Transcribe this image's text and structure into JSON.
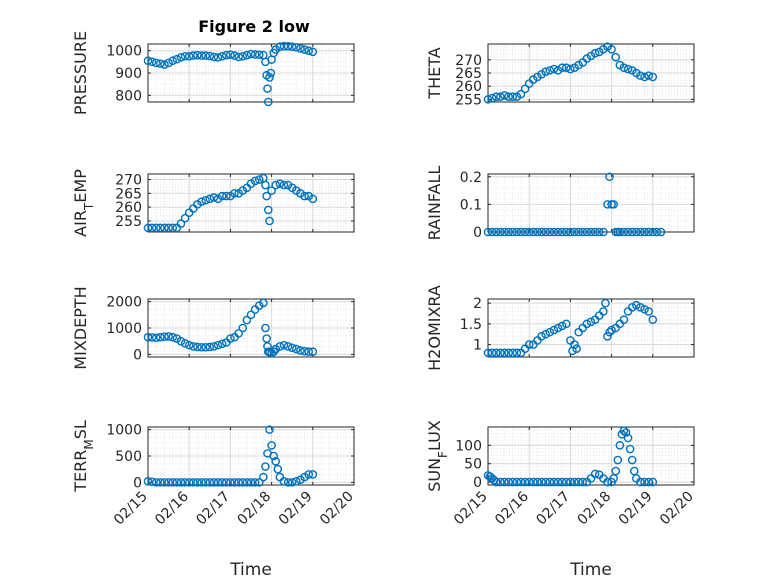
{
  "title": "Figure 2 low",
  "colors": {
    "marker": "#0072BD",
    "axis": "#262626",
    "grid": "#d8d8d8"
  },
  "chart_data": [
    {
      "type": "scatter",
      "ylabel": "PRESSURE",
      "xlabel": "",
      "ylim": [
        770,
        1030
      ],
      "yticks": [
        800,
        900,
        1000
      ],
      "ytick_labels": [
        "800",
        "900",
        "1000"
      ],
      "xlim": [
        0,
        5
      ],
      "grid": true,
      "x": [
        0.0,
        0.1,
        0.2,
        0.3,
        0.4,
        0.5,
        0.6,
        0.7,
        0.8,
        0.9,
        1.0,
        1.1,
        1.2,
        1.3,
        1.4,
        1.5,
        1.6,
        1.7,
        1.8,
        1.9,
        2.0,
        2.1,
        2.2,
        2.3,
        2.4,
        2.5,
        2.6,
        2.7,
        2.8,
        2.85,
        2.88,
        2.9,
        2.92,
        2.95,
        2.98,
        3.0,
        3.05,
        3.1,
        3.2,
        3.3,
        3.4,
        3.5,
        3.6,
        3.7,
        3.8,
        3.9,
        4.0
      ],
      "y": [
        955,
        950,
        945,
        942,
        938,
        945,
        955,
        962,
        970,
        975,
        975,
        978,
        980,
        978,
        978,
        976,
        972,
        970,
        975,
        980,
        982,
        978,
        972,
        975,
        980,
        985,
        983,
        982,
        980,
        950,
        890,
        830,
        770,
        880,
        900,
        960,
        990,
        1005,
        1018,
        1020,
        1020,
        1018,
        1015,
        1010,
        1005,
        1000,
        995
      ]
    },
    {
      "type": "scatter",
      "ylabel": "THETA",
      "xlabel": "",
      "ylim": [
        254,
        276
      ],
      "yticks": [
        255,
        260,
        265,
        270
      ],
      "ytick_labels": [
        "255",
        "260",
        "265",
        "270"
      ],
      "xlim": [
        0,
        5
      ],
      "grid": true,
      "x": [
        0.0,
        0.1,
        0.2,
        0.3,
        0.4,
        0.5,
        0.6,
        0.7,
        0.8,
        0.9,
        1.0,
        1.1,
        1.2,
        1.3,
        1.4,
        1.5,
        1.6,
        1.7,
        1.8,
        1.9,
        2.0,
        2.1,
        2.2,
        2.3,
        2.4,
        2.5,
        2.6,
        2.7,
        2.8,
        2.9,
        3.0,
        3.1,
        3.2,
        3.3,
        3.4,
        3.5,
        3.6,
        3.7,
        3.8,
        3.9,
        4.0
      ],
      "y": [
        255,
        255.5,
        256,
        256,
        256.5,
        256,
        256,
        256,
        257,
        259,
        261,
        262.5,
        263.5,
        264.5,
        265.5,
        266,
        266.5,
        266,
        267,
        267,
        266.5,
        267,
        268,
        269,
        270.5,
        271.5,
        272.5,
        273,
        274,
        275,
        274,
        271,
        268,
        267,
        266.5,
        266,
        265,
        264,
        263.5,
        264,
        263.5
      ]
    },
    {
      "type": "scatter",
      "ylabel": "AIR_TEMP",
      "xlabel": "",
      "ylim": [
        251,
        272
      ],
      "yticks": [
        255,
        260,
        265,
        270
      ],
      "ytick_labels": [
        "255",
        "260",
        "265",
        "270"
      ],
      "xlim": [
        0,
        5
      ],
      "grid": true,
      "x": [
        0.0,
        0.1,
        0.2,
        0.3,
        0.4,
        0.5,
        0.6,
        0.7,
        0.8,
        0.9,
        1.0,
        1.1,
        1.2,
        1.3,
        1.4,
        1.5,
        1.6,
        1.7,
        1.8,
        1.9,
        2.0,
        2.1,
        2.2,
        2.3,
        2.4,
        2.5,
        2.6,
        2.7,
        2.8,
        2.85,
        2.88,
        2.92,
        2.95,
        3.0,
        3.1,
        3.2,
        3.3,
        3.4,
        3.5,
        3.6,
        3.7,
        3.8,
        3.9,
        4.0
      ],
      "y": [
        252.5,
        252.5,
        252.5,
        252.5,
        252.5,
        252.5,
        252.5,
        252.5,
        254,
        256,
        258,
        259.5,
        261,
        262,
        262.5,
        263,
        263.5,
        263,
        264,
        264,
        264,
        265,
        265,
        266,
        267,
        268.5,
        269.5,
        270,
        270.5,
        268,
        264,
        259,
        255,
        266,
        268,
        268.5,
        268,
        268,
        267,
        266,
        265,
        264,
        264,
        263
      ]
    },
    {
      "type": "scatter",
      "ylabel": "RAINFALL",
      "xlabel": "",
      "ylim": [
        0,
        0.21
      ],
      "yticks": [
        0,
        0.1,
        0.2
      ],
      "ytick_labels": [
        "0",
        "0.1",
        "0.2"
      ],
      "xlim": [
        0,
        5
      ],
      "grid": true,
      "x": [
        0.0,
        0.1,
        0.2,
        0.3,
        0.4,
        0.5,
        0.6,
        0.7,
        0.8,
        0.9,
        1.0,
        1.1,
        1.2,
        1.3,
        1.4,
        1.5,
        1.6,
        1.7,
        1.8,
        1.9,
        2.0,
        2.1,
        2.2,
        2.3,
        2.4,
        2.5,
        2.6,
        2.7,
        2.8,
        2.9,
        2.95,
        3.0,
        3.05,
        3.1,
        3.15,
        3.2,
        3.3,
        3.4,
        3.5,
        3.6,
        3.7,
        3.8,
        3.9,
        4.0,
        4.1,
        4.2
      ],
      "y": [
        0,
        0,
        0,
        0,
        0,
        0,
        0,
        0,
        0,
        0,
        0,
        0,
        0,
        0,
        0,
        0,
        0,
        0,
        0,
        0,
        0,
        0,
        0,
        0,
        0,
        0,
        0,
        0,
        0,
        0.1,
        0.2,
        0.1,
        0.1,
        0,
        0,
        0,
        0,
        0,
        0,
        0,
        0,
        0,
        0,
        0,
        0,
        0
      ]
    },
    {
      "type": "scatter",
      "ylabel": "MIXDEPTH",
      "xlabel": "",
      "ylim": [
        -100,
        2100
      ],
      "yticks": [
        0,
        1000,
        2000
      ],
      "ytick_labels": [
        "0",
        "1000",
        "2000"
      ],
      "xlim": [
        0,
        5
      ],
      "grid": true,
      "x": [
        0.0,
        0.1,
        0.2,
        0.3,
        0.4,
        0.5,
        0.6,
        0.7,
        0.8,
        0.9,
        1.0,
        1.1,
        1.2,
        1.3,
        1.4,
        1.5,
        1.6,
        1.7,
        1.8,
        1.9,
        2.0,
        2.1,
        2.2,
        2.3,
        2.4,
        2.5,
        2.6,
        2.7,
        2.8,
        2.85,
        2.88,
        2.9,
        2.92,
        2.95,
        3.0,
        3.05,
        3.1,
        3.2,
        3.3,
        3.4,
        3.5,
        3.6,
        3.7,
        3.8,
        3.9,
        4.0
      ],
      "y": [
        650,
        640,
        630,
        650,
        670,
        680,
        650,
        600,
        500,
        420,
        350,
        300,
        280,
        270,
        270,
        280,
        300,
        350,
        400,
        450,
        600,
        650,
        800,
        1000,
        1300,
        1500,
        1700,
        1850,
        1950,
        1000,
        600,
        300,
        100,
        80,
        50,
        100,
        200,
        300,
        350,
        300,
        250,
        200,
        150,
        120,
        100,
        100
      ]
    },
    {
      "type": "scatter",
      "ylabel": "H2OMIXRA",
      "xlabel": "",
      "ylim": [
        0.7,
        2.1
      ],
      "yticks": [
        1,
        1.5,
        2
      ],
      "ytick_labels": [
        "1",
        "1.5",
        "2"
      ],
      "xlim": [
        0,
        5
      ],
      "grid": true,
      "x": [
        0.0,
        0.1,
        0.2,
        0.3,
        0.4,
        0.5,
        0.6,
        0.7,
        0.8,
        0.9,
        1.0,
        1.1,
        1.2,
        1.3,
        1.4,
        1.5,
        1.6,
        1.7,
        1.8,
        1.9,
        2.0,
        2.05,
        2.1,
        2.15,
        2.2,
        2.3,
        2.4,
        2.5,
        2.6,
        2.7,
        2.8,
        2.85,
        2.9,
        2.95,
        3.0,
        3.1,
        3.2,
        3.3,
        3.4,
        3.5,
        3.6,
        3.7,
        3.8,
        3.9,
        4.0
      ],
      "y": [
        0.8,
        0.8,
        0.8,
        0.8,
        0.8,
        0.8,
        0.8,
        0.8,
        0.8,
        0.9,
        1.0,
        1.0,
        1.1,
        1.2,
        1.25,
        1.3,
        1.35,
        1.4,
        1.45,
        1.5,
        1.1,
        0.85,
        1.0,
        0.9,
        1.3,
        1.4,
        1.5,
        1.55,
        1.6,
        1.7,
        1.8,
        2.0,
        1.2,
        1.3,
        1.35,
        1.4,
        1.5,
        1.6,
        1.8,
        1.9,
        1.95,
        1.9,
        1.85,
        1.8,
        1.6
      ]
    },
    {
      "type": "scatter",
      "ylabel": "TERR_MSL",
      "xlabel": "Time",
      "ylim": [
        -50,
        1050
      ],
      "yticks": [
        0,
        500,
        1000
      ],
      "ytick_labels": [
        "0",
        "500",
        "1000"
      ],
      "xlim": [
        0,
        5
      ],
      "xticks": [
        0,
        1,
        2,
        3,
        4,
        5
      ],
      "xtick_labels": [
        "02/15",
        "02/16",
        "02/17",
        "02/18",
        "02/19",
        "02/20"
      ],
      "grid": true,
      "x": [
        0.0,
        0.1,
        0.2,
        0.3,
        0.4,
        0.5,
        0.6,
        0.7,
        0.8,
        0.9,
        1.0,
        1.1,
        1.2,
        1.3,
        1.4,
        1.5,
        1.6,
        1.7,
        1.8,
        1.9,
        2.0,
        2.1,
        2.2,
        2.3,
        2.4,
        2.5,
        2.6,
        2.7,
        2.8,
        2.85,
        2.9,
        2.95,
        3.0,
        3.05,
        3.1,
        3.15,
        3.2,
        3.3,
        3.4,
        3.5,
        3.6,
        3.7,
        3.8,
        3.9,
        4.0
      ],
      "y": [
        20,
        10,
        0,
        0,
        0,
        0,
        0,
        0,
        0,
        0,
        0,
        0,
        0,
        0,
        0,
        0,
        0,
        0,
        0,
        0,
        0,
        0,
        0,
        0,
        0,
        0,
        0,
        0,
        100,
        300,
        550,
        1000,
        700,
        500,
        400,
        250,
        100,
        20,
        0,
        0,
        20,
        50,
        100,
        150,
        150
      ]
    },
    {
      "type": "scatter",
      "ylabel": "SUN_FLUX",
      "xlabel": "Time",
      "ylim": [
        -8,
        150
      ],
      "yticks": [
        0,
        50,
        100
      ],
      "ytick_labels": [
        "0",
        "50",
        "100"
      ],
      "xlim": [
        0,
        5
      ],
      "xticks": [
        0,
        1,
        2,
        3,
        4,
        5
      ],
      "xtick_labels": [
        "02/15",
        "02/16",
        "02/17",
        "02/18",
        "02/19",
        "02/20"
      ],
      "grid": true,
      "x": [
        0.0,
        0.05,
        0.1,
        0.15,
        0.2,
        0.3,
        0.4,
        0.5,
        0.6,
        0.7,
        0.8,
        0.9,
        1.0,
        1.1,
        1.2,
        1.3,
        1.4,
        1.5,
        1.6,
        1.7,
        1.8,
        1.9,
        2.0,
        2.1,
        2.2,
        2.3,
        2.4,
        2.5,
        2.6,
        2.7,
        2.8,
        2.9,
        3.0,
        3.05,
        3.1,
        3.15,
        3.2,
        3.25,
        3.3,
        3.35,
        3.4,
        3.45,
        3.5,
        3.55,
        3.6,
        3.7,
        3.8,
        3.9,
        4.0
      ],
      "y": [
        18,
        15,
        10,
        5,
        0,
        0,
        0,
        0,
        0,
        0,
        0,
        0,
        0,
        0,
        0,
        0,
        0,
        0,
        0,
        0,
        0,
        0,
        0,
        0,
        0,
        0,
        0,
        10,
        22,
        20,
        10,
        0,
        0,
        10,
        30,
        60,
        100,
        130,
        140,
        135,
        120,
        90,
        60,
        30,
        10,
        0,
        0,
        0,
        0
      ]
    }
  ]
}
